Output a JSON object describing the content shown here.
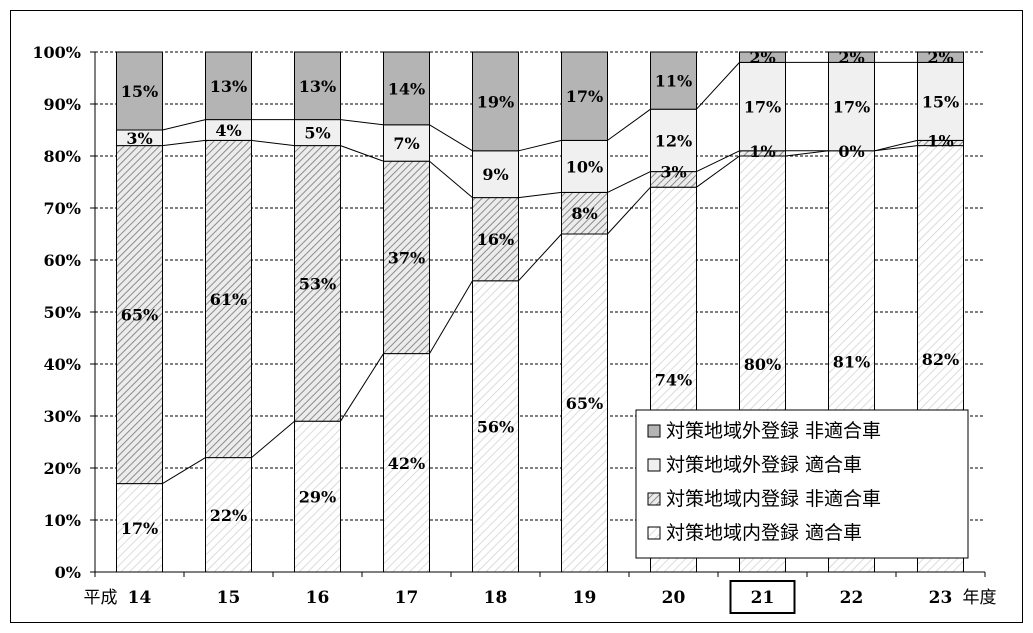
{
  "chart_data": {
    "type": "bar",
    "stacked": true,
    "percent": true,
    "categories": [
      "14",
      "15",
      "16",
      "17",
      "18",
      "19",
      "20",
      "21",
      "22",
      "23"
    ],
    "x_prefix": "平成",
    "x_suffix": "年度",
    "highlighted_category": "21",
    "series": [
      {
        "name": "対策地域内登録 適合車",
        "values": [
          17,
          22,
          29,
          42,
          56,
          65,
          74,
          80,
          81,
          82
        ],
        "pattern": "light-hatch"
      },
      {
        "name": "対策地域内登録 非適合車",
        "values": [
          65,
          61,
          53,
          37,
          16,
          8,
          3,
          1,
          0,
          1
        ],
        "pattern": "dense-hatch"
      },
      {
        "name": "対策地域外登録 適合車",
        "values": [
          3,
          4,
          5,
          7,
          9,
          10,
          12,
          17,
          17,
          15
        ],
        "pattern": "light-gray"
      },
      {
        "name": "対策地域外登録 非適合車",
        "values": [
          15,
          13,
          13,
          14,
          19,
          17,
          11,
          2,
          2,
          2
        ],
        "pattern": "gray"
      }
    ],
    "legend_order": [
      "対策地域外登録 非適合車",
      "対策地域外登録 適合車",
      "対策地域内登録 非適合車",
      "対策地域内登録 適合車"
    ],
    "y_ticks": [
      "0%",
      "10%",
      "20%",
      "30%",
      "40%",
      "50%",
      "60%",
      "70%",
      "80%",
      "90%",
      "100%"
    ],
    "ylim": [
      0,
      100
    ],
    "grid": true,
    "legend_position": "bottom-right",
    "colors": {
      "gray": "#b4b4b4",
      "light_gray": "#f0f0f0",
      "hatch": "#8c8c8c",
      "light_hatch": "#c8c8c8",
      "line": "#000000"
    }
  }
}
